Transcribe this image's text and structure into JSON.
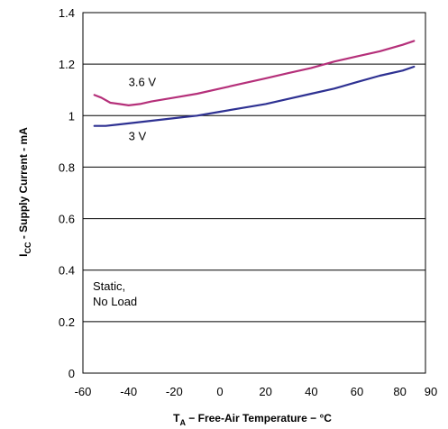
{
  "chart_data": {
    "type": "line",
    "xlabel": {
      "main": "T",
      "sub": "A",
      "rest": " − Free-Air Temperature − °C"
    },
    "ylabel": {
      "main": "I",
      "sub": "CC",
      "rest": " - Supply Current - mA"
    },
    "xlim": [
      -60,
      90
    ],
    "ylim": [
      0,
      1.4
    ],
    "xticks": [
      -60,
      -40,
      -20,
      0,
      20,
      40,
      60,
      80,
      90
    ],
    "xtick_labels": [
      "-60",
      "-40",
      "-20",
      "0",
      "20",
      "40",
      "60",
      "80",
      "90"
    ],
    "yticks": [
      0,
      0.2,
      0.4,
      0.6,
      0.8,
      1,
      1.2,
      1.4
    ],
    "ytick_labels": [
      "0",
      "0.2",
      "0.4",
      "0.6",
      "0.8",
      "1",
      "1.2",
      "1.4"
    ],
    "grid": "horizontal",
    "series": [
      {
        "name": "3.6 V",
        "color": "#b5307a",
        "x": [
          -55,
          -52,
          -48,
          -44,
          -40,
          -35,
          -30,
          -20,
          -10,
          0,
          10,
          20,
          30,
          40,
          50,
          60,
          70,
          80,
          85
        ],
        "values": [
          1.08,
          1.07,
          1.05,
          1.045,
          1.04,
          1.045,
          1.055,
          1.07,
          1.085,
          1.105,
          1.125,
          1.145,
          1.165,
          1.185,
          1.21,
          1.23,
          1.25,
          1.275,
          1.29
        ]
      },
      {
        "name": "3 V",
        "color": "#2e3192",
        "x": [
          -55,
          -50,
          -40,
          -30,
          -20,
          -10,
          0,
          10,
          20,
          30,
          40,
          50,
          60,
          70,
          80,
          85
        ],
        "values": [
          0.96,
          0.96,
          0.97,
          0.98,
          0.99,
          1.0,
          1.015,
          1.03,
          1.045,
          1.065,
          1.085,
          1.105,
          1.13,
          1.155,
          1.175,
          1.19
        ]
      }
    ],
    "annotations": [
      "Static,",
      "No Load"
    ]
  }
}
